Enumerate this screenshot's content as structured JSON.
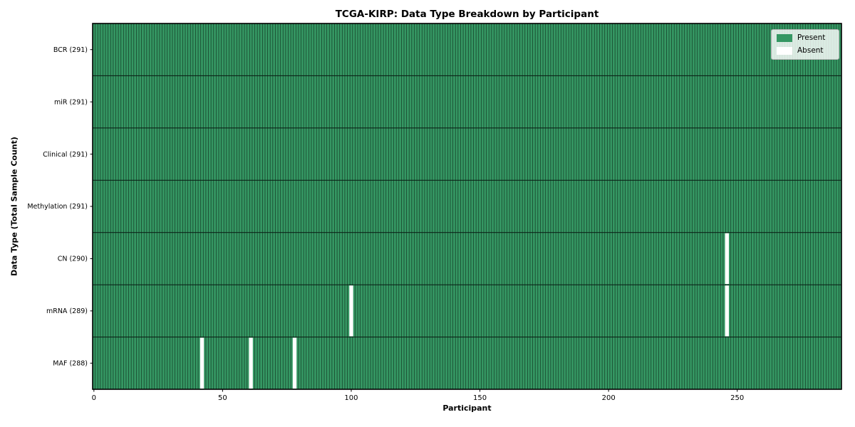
{
  "chart_data": {
    "type": "heatmap",
    "title": "TCGA-KIRP: Data Type Breakdown by Participant",
    "xlabel": "Participant",
    "ylabel": "Data Type (Total Sample Count)",
    "n_participants": 291,
    "x_ticks": [
      0,
      50,
      100,
      150,
      200,
      250
    ],
    "rows": [
      {
        "label": "BCR (291)",
        "data_type": "BCR",
        "total_samples": 291,
        "absent_participants": []
      },
      {
        "label": "miR (291)",
        "data_type": "miR",
        "total_samples": 291,
        "absent_participants": []
      },
      {
        "label": "Clinical (291)",
        "data_type": "Clinical",
        "total_samples": 291,
        "absent_participants": []
      },
      {
        "label": "Methylation (291)",
        "data_type": "Methylation",
        "total_samples": 291,
        "absent_participants": []
      },
      {
        "label": "CN (290)",
        "data_type": "CN",
        "total_samples": 290,
        "absent_participants": [
          246
        ]
      },
      {
        "label": "mRNA (289)",
        "data_type": "mRNA",
        "total_samples": 289,
        "absent_participants": [
          100,
          246
        ]
      },
      {
        "label": "MAF (288)",
        "data_type": "MAF",
        "total_samples": 288,
        "absent_participants": [
          42,
          61,
          78
        ]
      }
    ],
    "values_encoding": {
      "present": 1,
      "absent": 0
    },
    "colors": {
      "present": "#359763",
      "absent": "#ffffff",
      "cell_edge": "#10301f",
      "row_edge": "#0b2015",
      "spine": "#000000",
      "tick_label": "#000000"
    },
    "legend": [
      {
        "label": "Present",
        "color": "#359763"
      },
      {
        "label": "Absent",
        "color": "#ffffff"
      }
    ],
    "legend_position": "upper right",
    "grid": "cell-borders"
  }
}
